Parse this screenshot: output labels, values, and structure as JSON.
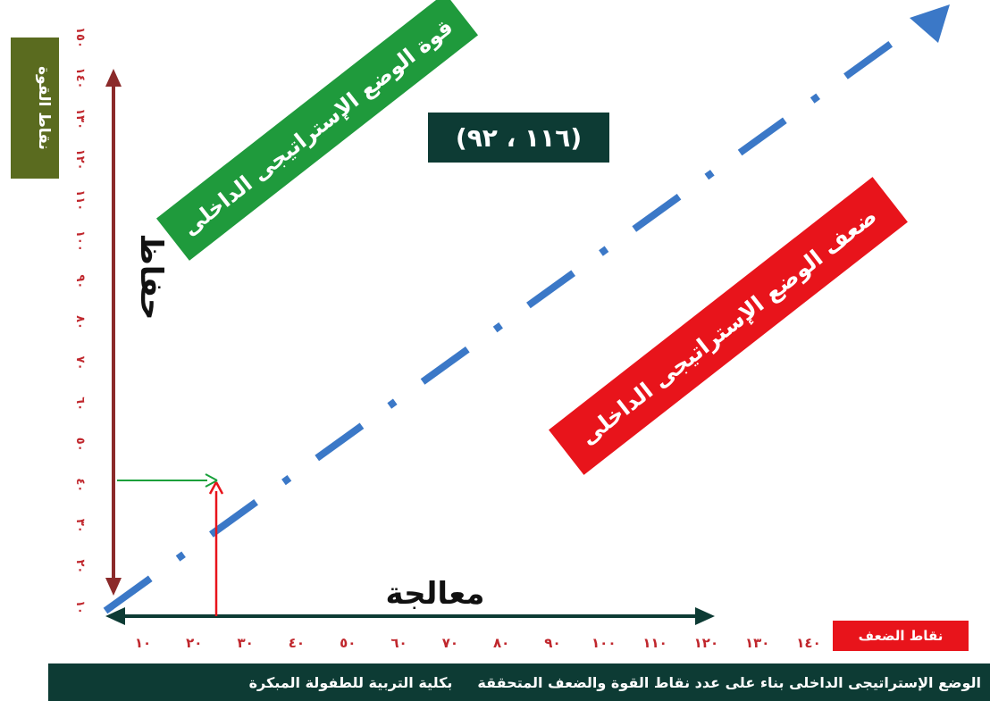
{
  "y_axis": {
    "title": "نقاط القوة",
    "ticks": [
      "١٠",
      "٢٠",
      "٣٠",
      "٤٠",
      "٥٠",
      "٦٠",
      "٧٠",
      "٨٠",
      "٩٠",
      "١٠٠",
      "١١٠",
      "١٢٠",
      "١٣٠",
      "١٤٠",
      "١٥٠"
    ]
  },
  "x_axis": {
    "title": "نقاط الضعف",
    "ticks": [
      "١٠",
      "٢٠",
      "٣٠",
      "٤٠",
      "٥٠",
      "٦٠",
      "٧٠",
      "٨٠",
      "٩٠",
      "١٠٠",
      "١١٠",
      "١٢٠",
      "١٣٠",
      "١٤٠"
    ]
  },
  "coordinate_label": "(١١٦ ، ٩٢)",
  "strength_zone_label": "قوة الوضع الإستراتيجى الداخلى",
  "weakness_zone_label": "ضعف الوضع الإستراتيجى الداخلى",
  "vertical_arrow_label": "حفاظ",
  "horizontal_arrow_label": "معالجة",
  "footer": {
    "caption": "الوضع الإستراتيجى الداخلى بناء على عدد نقاط القوة والضعف المتحققة",
    "org": "بكلية التربية للطفولة المبكرة"
  },
  "colors": {
    "tick_red": "#c0272d",
    "dark_teal": "#0d3b34",
    "green_banner": "#1f9a3c",
    "red_banner": "#e8141b",
    "diagonal_blue": "#3b78c7",
    "vertical_arrow": "#8b2a2a",
    "green_arrow": "#17a03a",
    "red_arrow": "#e8141b"
  }
}
